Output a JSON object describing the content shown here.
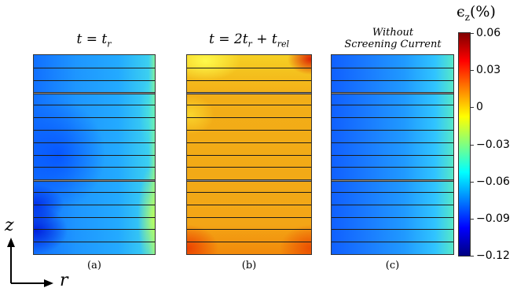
{
  "panels": [
    {
      "title": "t = t_r",
      "caption": "(a)"
    },
    {
      "title": "t = 2t_r + t_rel",
      "caption": "(b)"
    },
    {
      "title_line1": "Without",
      "title_line2": "Screening Current",
      "caption": "(c)"
    }
  ],
  "colorbar": {
    "title": "ϵ_z(%)",
    "ticks": [
      "0.06",
      "0.03",
      "0",
      "−0.03",
      "−0.06",
      "−0.09",
      "−0.12"
    ],
    "range": [
      -0.12,
      0.06
    ]
  },
  "axes": {
    "vertical": "z",
    "horizontal": "r"
  },
  "colors": {
    "jet_dark_red": "#800000",
    "jet_dark_blue": "#000080",
    "panel_a_base": "#1e9aff",
    "panel_b_base": "#f4b318",
    "panel_c_base": "#2080ff"
  }
}
